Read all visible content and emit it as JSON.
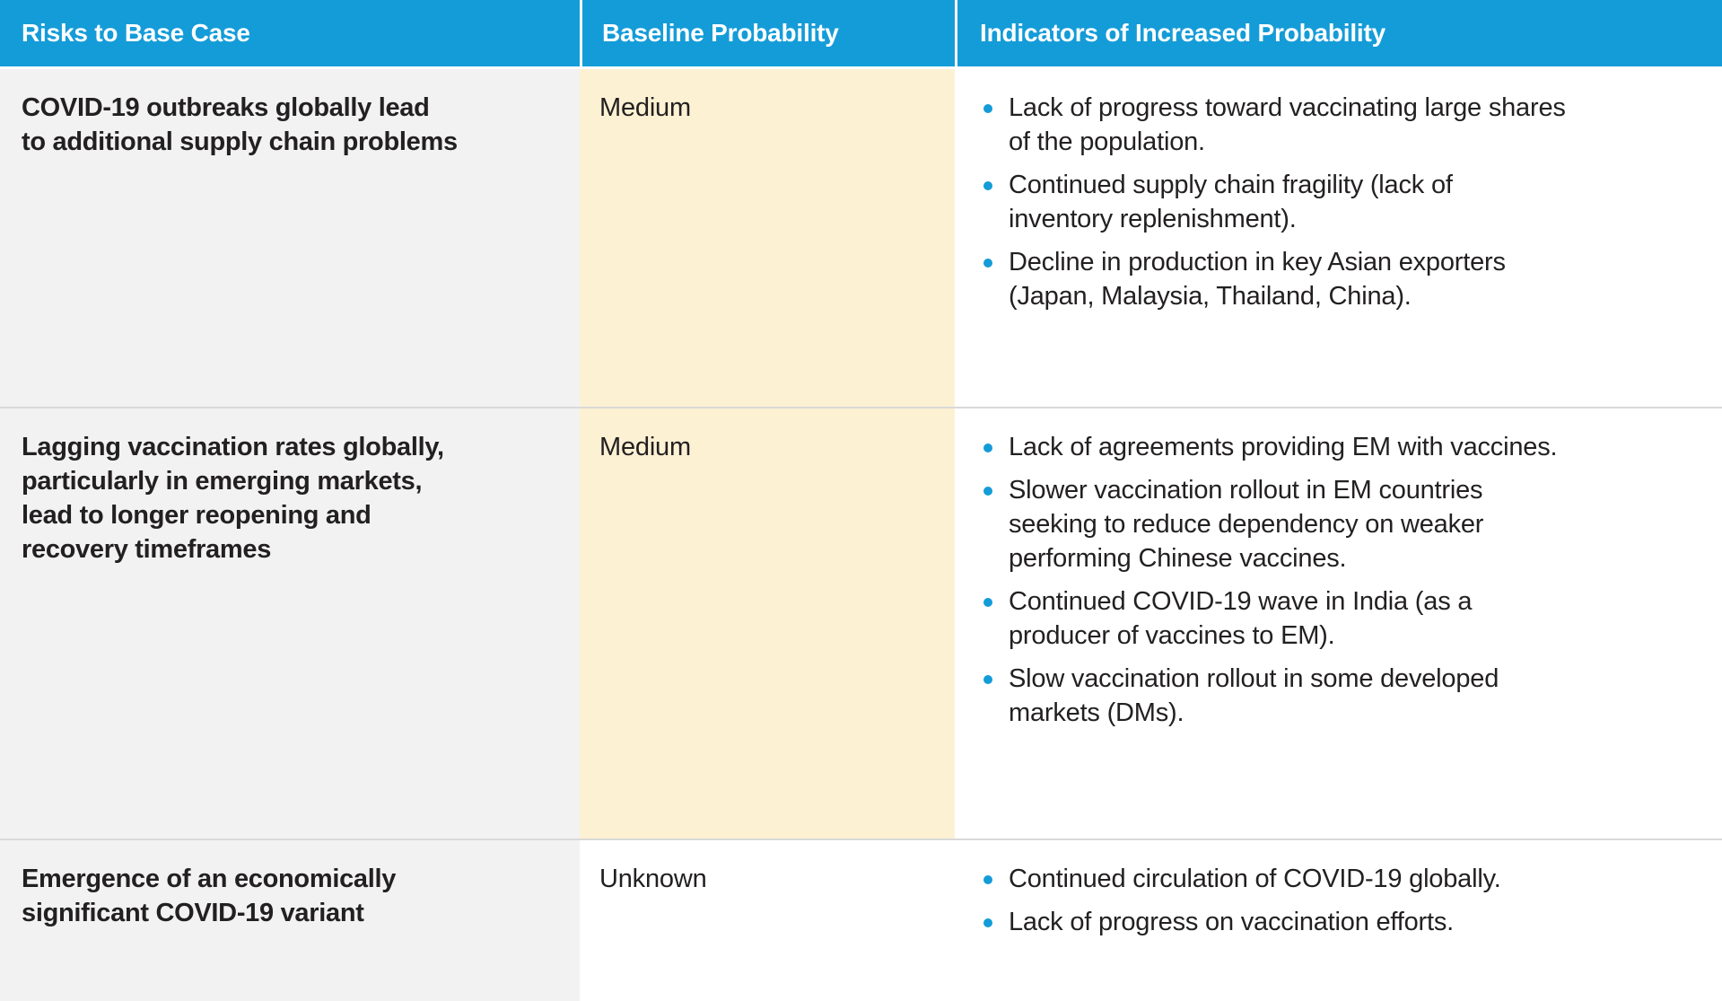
{
  "table": {
    "columns": [
      {
        "label": "Risks to Base Case"
      },
      {
        "label": "Baseline Probability"
      },
      {
        "label": "Indicators of Increased Probability"
      }
    ],
    "rows": [
      {
        "risk": "COVID-19 outbreaks globally lead\nto additional supply chain problems",
        "probability": "Medium",
        "probability_highlight": true,
        "indicators": [
          "Lack of progress toward vaccinating large shares\nof the population.",
          "Continued supply chain fragility (lack of\ninventory replenishment).",
          "Decline in production in key Asian exporters\n(Japan, Malaysia, Thailand, China)."
        ]
      },
      {
        "risk": "Lagging vaccination rates globally,\nparticularly in emerging markets,\nlead to longer reopening and\nrecovery timeframes",
        "probability": "Medium",
        "probability_highlight": true,
        "indicators": [
          "Lack of agreements providing EM with vaccines.",
          "Slower vaccination rollout in EM countries\nseeking to reduce dependency on weaker\nperforming Chinese vaccines.",
          "Continued COVID-19 wave in India (as a\nproducer of vaccines to EM).",
          "Slow vaccination rollout in some developed\nmarkets (DMs)."
        ]
      },
      {
        "risk": "Emergence of an economically\nsignificant COVID-19 variant",
        "probability": "Unknown",
        "probability_highlight": false,
        "indicators": [
          "Continued circulation of COVID-19 globally.",
          "Lack of progress on vaccination efforts."
        ]
      }
    ],
    "colors": {
      "header_bg": "#149CD8",
      "header_text": "#FFFFFF",
      "risk_column_bg": "#F2F2F2",
      "probability_highlight_bg": "#FCF1D3",
      "bullet": "#149CD8",
      "body_text": "#232021",
      "row_divider": "#D9D9D9"
    }
  }
}
